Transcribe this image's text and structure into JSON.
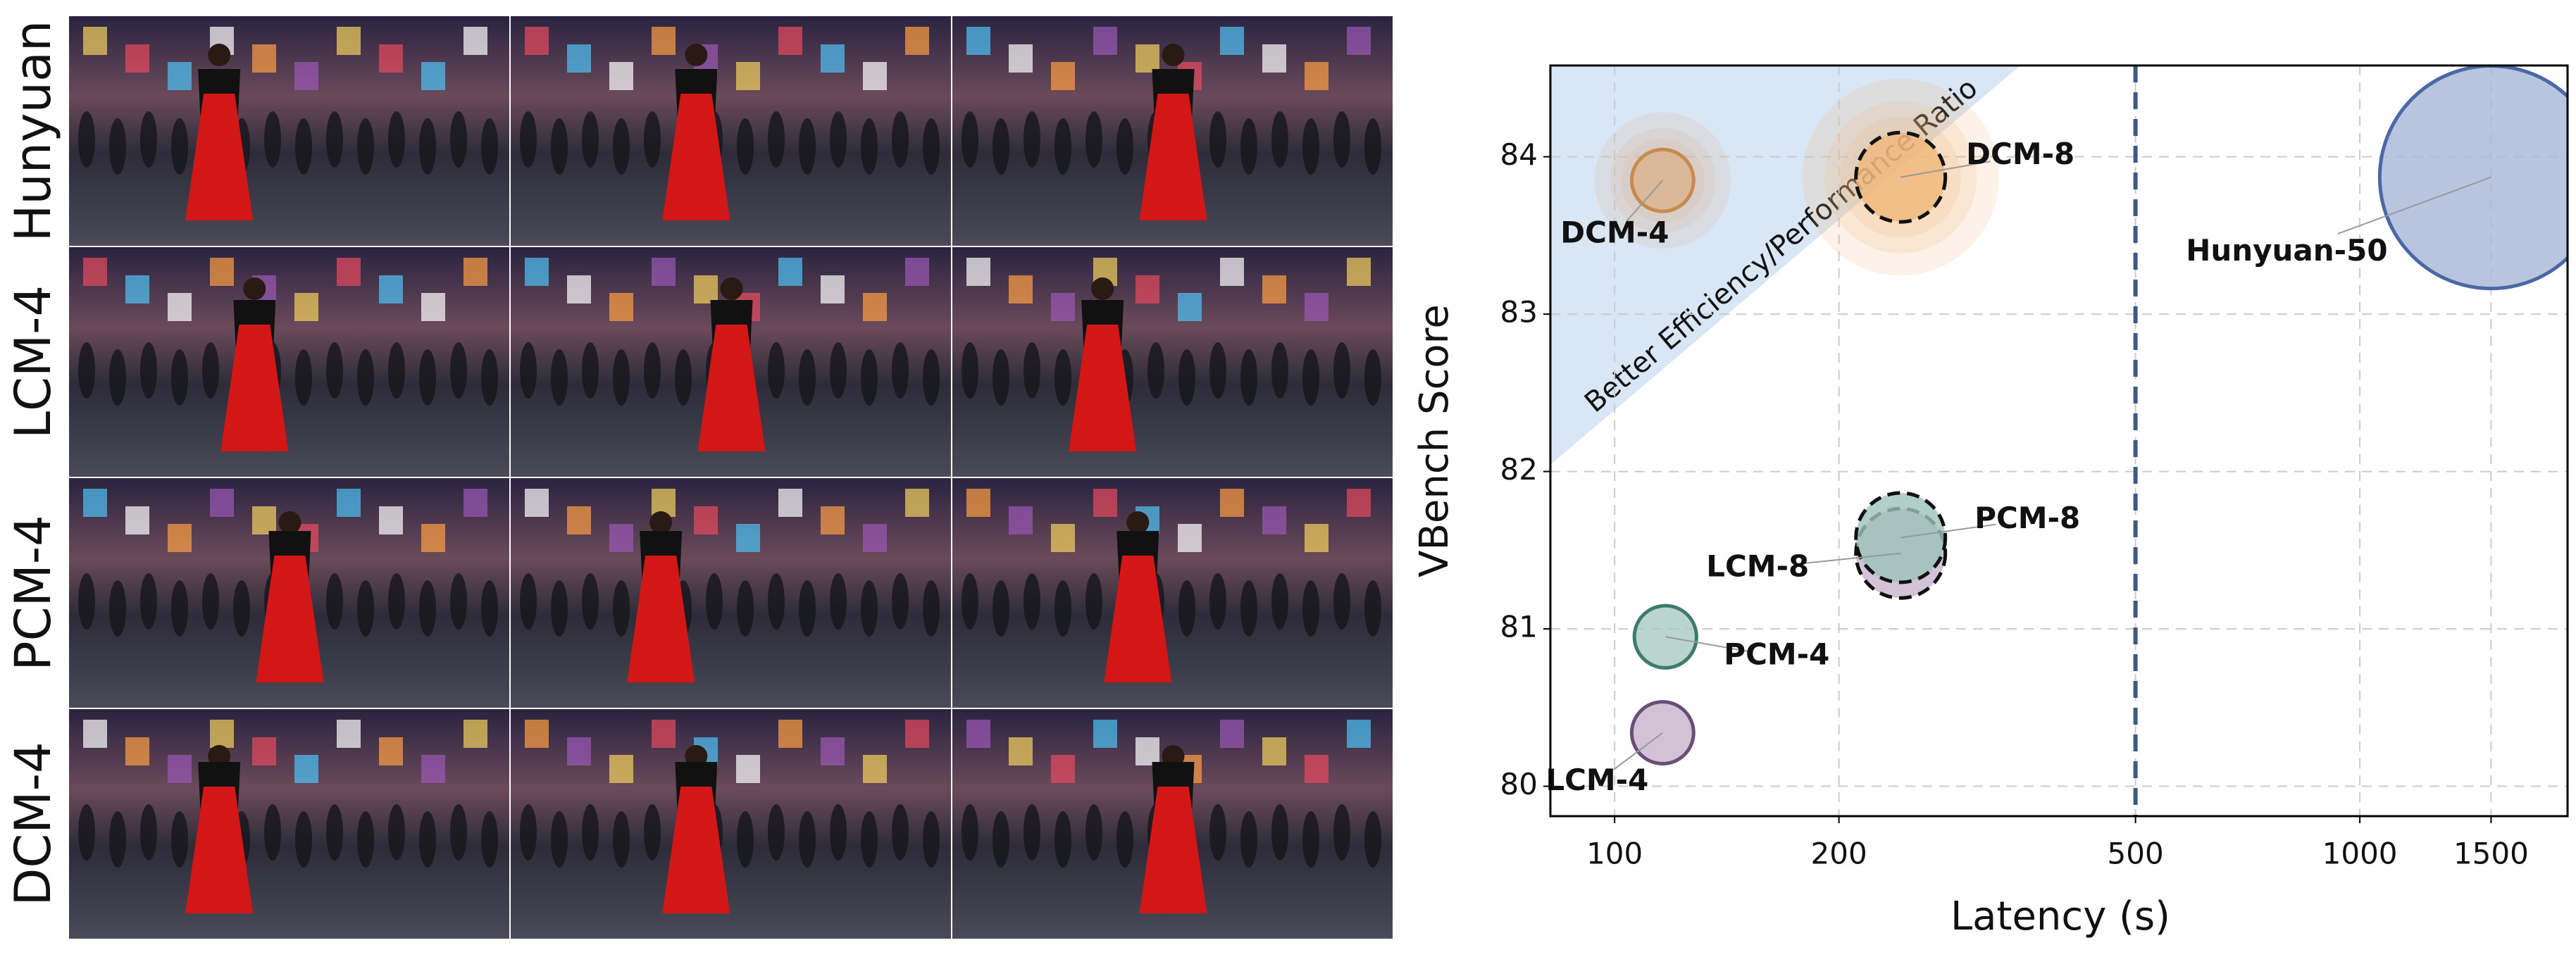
{
  "image_grid": {
    "row_labels": [
      "Hunyuan",
      "LCM-4",
      "PCM-4",
      "DCM-4"
    ]
  },
  "chart_data": {
    "type": "bubble",
    "xlabel": "Latency (s)",
    "ylabel": "VBench Score",
    "annotation": "Better Efficiency/Performance Ratio",
    "xscale": "log",
    "xlim": [
      82,
      1900
    ],
    "xticks": [
      100,
      200,
      500,
      1000,
      1500
    ],
    "ylim": [
      79.81,
      84.58
    ],
    "yticks": [
      80,
      81,
      82,
      83,
      84
    ],
    "grid": true,
    "vline": 500,
    "series": [
      {
        "name": "DCM-4",
        "color": "#c98a50",
        "fill": "#d9b48e",
        "dashed": false,
        "halo": true,
        "x": [
          116
        ],
        "values": [
          83.85
        ]
      },
      {
        "name": "DCM-8",
        "color": "#e0883a",
        "fill": "#f0b77a",
        "dashed": true,
        "halo": true,
        "x": [
          242
        ],
        "values": [
          83.87
        ]
      },
      {
        "name": "Hunyuan-50",
        "color": "#4a67a6",
        "fill": "#a7b6d6",
        "dashed": false,
        "halo": false,
        "x": [
          1500
        ],
        "values": [
          83.87
        ]
      },
      {
        "name": "LCM-8",
        "color": "#6a4e7a",
        "fill": "#c8b4cc",
        "dashed": true,
        "halo": false,
        "x": [
          242
        ],
        "values": [
          81.48
        ]
      },
      {
        "name": "PCM-8",
        "color": "#3f7a6e",
        "fill": "#9ec2ba",
        "dashed": true,
        "halo": false,
        "x": [
          242
        ],
        "values": [
          81.58
        ]
      },
      {
        "name": "PCM-4",
        "color": "#3f7a6e",
        "fill": "#a9c9c2",
        "dashed": false,
        "halo": false,
        "x": [
          117
        ],
        "values": [
          80.95
        ]
      },
      {
        "name": "LCM-4",
        "color": "#6a4e7a",
        "fill": "#c7b3cc",
        "dashed": false,
        "halo": false,
        "x": [
          116
        ],
        "values": [
          80.34
        ]
      }
    ]
  }
}
